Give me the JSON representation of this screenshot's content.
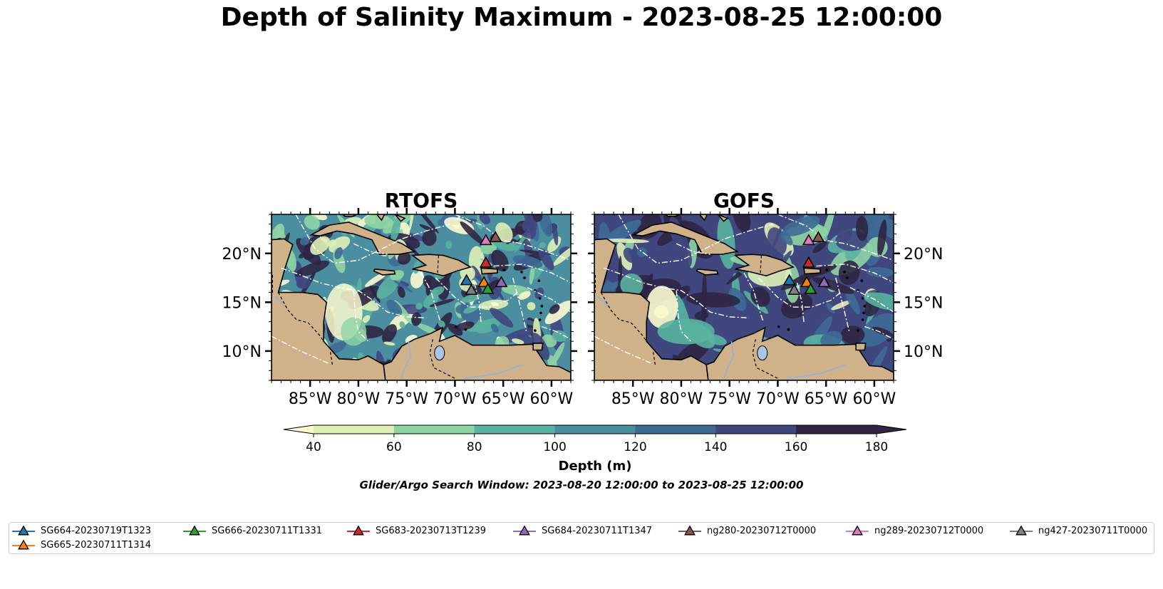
{
  "title": "Depth of Salinity Maximum - 2023-08-25 12:00:00",
  "search_window": "Glider/Argo Search Window: 2023-08-20 12:00:00 to 2023-08-25 12:00:00",
  "colors": {
    "land": "#cfb28a",
    "water_body": "#a9c6e8",
    "river": "#8fb3d9",
    "marker_edge": "#000000",
    "boundary": "#ffffff",
    "levels": [
      "#fdfbd0",
      "#dff0b6",
      "#8fd4a4",
      "#5ab2a0",
      "#4a8ea0",
      "#3e6a96",
      "#40477f",
      "#2e2543"
    ]
  },
  "chart_data": {
    "type": "heatmap",
    "colorbar": {
      "label": "Depth (m)",
      "ticks": [
        "40",
        "60",
        "80",
        "100",
        "120",
        "140",
        "160",
        "180"
      ],
      "levels": [
        40,
        60,
        80,
        100,
        120,
        140,
        160,
        180
      ],
      "extend": "both"
    },
    "map_extent": {
      "lon": [
        -89,
        -58
      ],
      "lat": [
        7,
        24
      ]
    },
    "x_ticks": [
      "85°W",
      "80°W",
      "75°W",
      "70°W",
      "65°W",
      "60°W"
    ],
    "x_tick_values": [
      -85,
      -80,
      -75,
      -70,
      -65,
      -60
    ],
    "y_ticks": [
      "20°N",
      "15°N",
      "10°N"
    ],
    "y_tick_values": [
      20,
      15,
      10
    ],
    "panels": [
      {
        "title": "RTOFS",
        "y_axis_side": "left",
        "background_class": 4
      },
      {
        "title": "GOFS",
        "y_axis_side": "right",
        "background_class": 6
      }
    ],
    "gliders": [
      {
        "name": "SG664-20230719T1323",
        "color": "#1f77b4",
        "lon": -68.8,
        "lat": 17.2
      },
      {
        "name": "SG665-20230711T1314",
        "color": "#ff7f0e",
        "lon": -67.0,
        "lat": 17.0
      },
      {
        "name": "SG666-20230711T1331",
        "color": "#2ca02c",
        "lon": -66.6,
        "lat": 16.3
      },
      {
        "name": "SG683-20230713T1239",
        "color": "#d62728",
        "lon": -66.8,
        "lat": 19.0
      },
      {
        "name": "SG684-20230711T1347",
        "color": "#9467bd",
        "lon": -65.2,
        "lat": 17.0
      },
      {
        "name": "ng280-20230712T0000",
        "color": "#8c564b",
        "lon": -65.8,
        "lat": 21.6
      },
      {
        "name": "ng289-20230712T0000",
        "color": "#e377c2",
        "lon": -66.8,
        "lat": 21.3
      },
      {
        "name": "ng427-20230711T0000",
        "color": "#7f7f7f",
        "lon": -68.3,
        "lat": 16.2
      }
    ]
  }
}
